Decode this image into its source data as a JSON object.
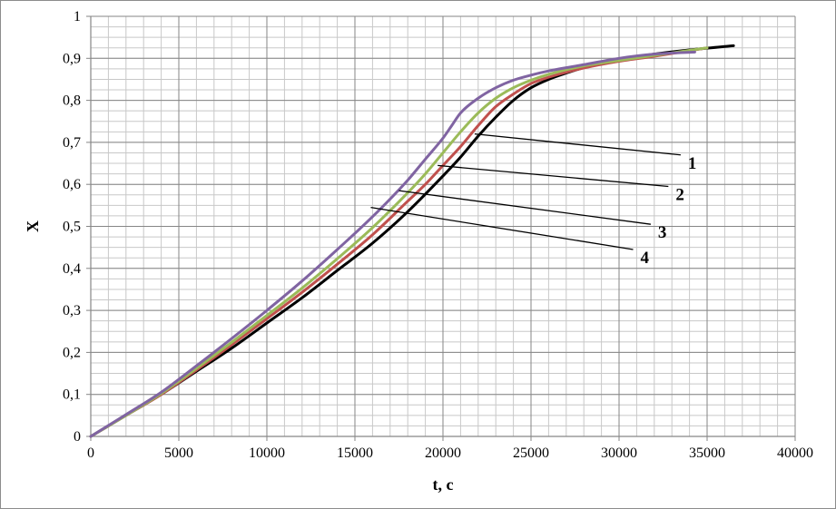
{
  "chart_data": {
    "type": "line",
    "xlabel": "t, c",
    "ylabel": "X",
    "xlim": [
      0,
      40000
    ],
    "ylim": [
      0,
      1
    ],
    "x_ticks": [
      0,
      5000,
      10000,
      15000,
      20000,
      25000,
      30000,
      35000,
      40000
    ],
    "x_tick_labels": [
      "0",
      "5000",
      "10000",
      "15000",
      "20000",
      "25000",
      "30000",
      "35000",
      "40000"
    ],
    "y_ticks": [
      0,
      0.1,
      0.2,
      0.3,
      0.4,
      0.5,
      0.6,
      0.7,
      0.8,
      0.9,
      1
    ],
    "y_tick_labels": [
      "0",
      "0,1",
      "0,2",
      "0,3",
      "0,4",
      "0,5",
      "0,6",
      "0,7",
      "0,8",
      "0,9",
      "1"
    ],
    "grid": true,
    "minor_grid": {
      "x_step": 1000,
      "y_step": 0.025
    },
    "legend": "none",
    "series": [
      {
        "label": "1",
        "color": "#000000",
        "x": [
          0,
          2000,
          4000,
          6000,
          8000,
          10000,
          12000,
          14000,
          16000,
          18000,
          20000,
          21000,
          22000,
          23000,
          24000,
          25000,
          26000,
          27000,
          28000,
          30000,
          32000,
          34000,
          36500
        ],
        "y": [
          0,
          0.05,
          0.1,
          0.155,
          0.21,
          0.27,
          0.33,
          0.395,
          0.46,
          0.535,
          0.62,
          0.665,
          0.715,
          0.76,
          0.8,
          0.83,
          0.85,
          0.865,
          0.878,
          0.897,
          0.91,
          0.92,
          0.93
        ]
      },
      {
        "label": "2",
        "color": "#c0504d",
        "x": [
          0,
          2000,
          4000,
          6000,
          8000,
          10000,
          12000,
          14000,
          16000,
          18000,
          19000,
          20000,
          21000,
          22000,
          23000,
          24000,
          25000,
          26000,
          28000,
          30000,
          32000,
          35000
        ],
        "y": [
          0,
          0.05,
          0.1,
          0.158,
          0.218,
          0.28,
          0.343,
          0.41,
          0.48,
          0.56,
          0.6,
          0.645,
          0.69,
          0.74,
          0.785,
          0.815,
          0.84,
          0.855,
          0.877,
          0.893,
          0.905,
          0.925
        ]
      },
      {
        "label": "3",
        "color": "#9bbb59",
        "x": [
          0,
          2000,
          4000,
          6000,
          8000,
          10000,
          12000,
          14000,
          16000,
          18000,
          19000,
          20000,
          21000,
          22000,
          23000,
          24000,
          25000,
          26000,
          28000,
          30000,
          32000,
          35000
        ],
        "y": [
          0,
          0.05,
          0.102,
          0.162,
          0.224,
          0.288,
          0.353,
          0.423,
          0.497,
          0.58,
          0.625,
          0.675,
          0.725,
          0.77,
          0.805,
          0.83,
          0.848,
          0.862,
          0.882,
          0.895,
          0.907,
          0.925
        ]
      },
      {
        "label": "4",
        "color": "#8064a2",
        "x": [
          0,
          2000,
          4000,
          6000,
          8000,
          10000,
          12000,
          14000,
          16000,
          18000,
          19000,
          20000,
          20500,
          21000,
          22000,
          23000,
          24000,
          25000,
          26000,
          28000,
          30000,
          32000,
          34300
        ],
        "y": [
          0,
          0.052,
          0.105,
          0.168,
          0.233,
          0.3,
          0.37,
          0.445,
          0.523,
          0.61,
          0.66,
          0.71,
          0.74,
          0.77,
          0.805,
          0.83,
          0.848,
          0.86,
          0.87,
          0.885,
          0.9,
          0.91,
          0.915
        ]
      }
    ],
    "callouts": [
      {
        "text": "1",
        "anchor": [
          21800,
          0.72
        ],
        "end_x": 33500,
        "end_y": 0.67
      },
      {
        "text": "2",
        "anchor": [
          19700,
          0.645
        ],
        "end_x": 32800,
        "end_y": 0.595
      },
      {
        "text": "3",
        "anchor": [
          17500,
          0.585
        ],
        "end_x": 31800,
        "end_y": 0.505
      },
      {
        "text": "4",
        "anchor": [
          15900,
          0.545
        ],
        "end_x": 30800,
        "end_y": 0.445
      }
    ]
  }
}
